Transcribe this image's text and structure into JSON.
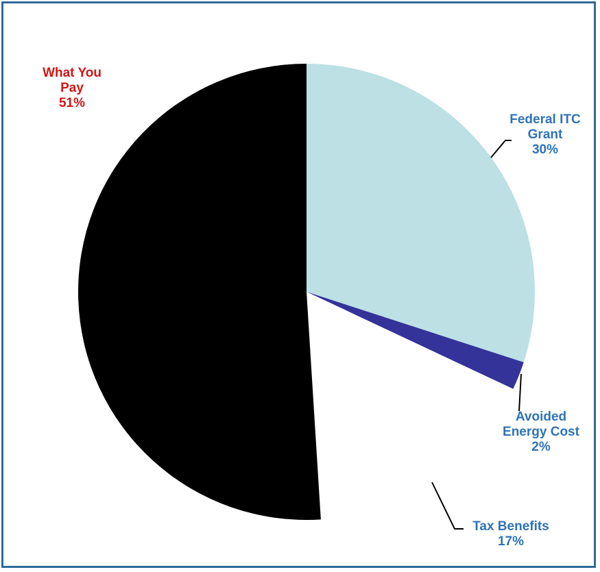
{
  "chart_data": {
    "type": "pie",
    "slices": [
      {
        "label_lines": [
          "Federal ITC",
          "Grant"
        ],
        "pct_text": "30%",
        "value": 30,
        "color": "#bce0e4",
        "label_color": "#2e73b8"
      },
      {
        "label_lines": [
          "Avoided",
          "Energy Cost"
        ],
        "pct_text": "2%",
        "value": 2,
        "color": "#333399",
        "label_color": "#2e73b8"
      },
      {
        "label_lines": [
          "Tax Benefits"
        ],
        "pct_text": "17%",
        "value": 17,
        "color": "#ffffff",
        "label_color": "#2e73b8"
      },
      {
        "label_lines": [
          "What You",
          "Pay"
        ],
        "pct_text": "51%",
        "value": 51,
        "color": "#000000",
        "label_color": "#d01616"
      }
    ],
    "legend": "none"
  }
}
